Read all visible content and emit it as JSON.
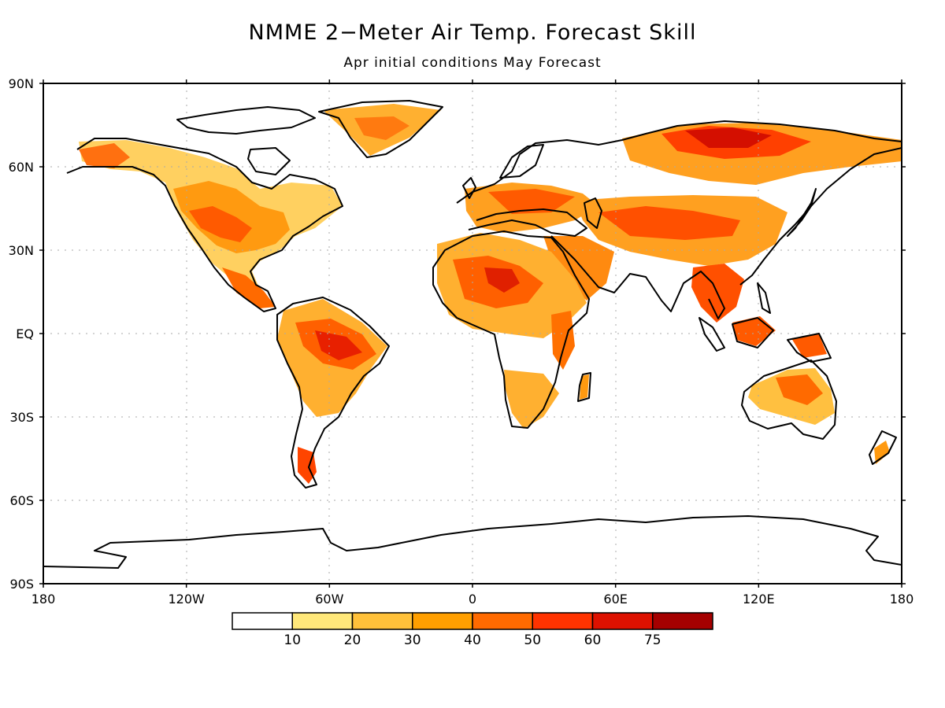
{
  "title": "NMME 2−Meter Air Temp. Forecast Skill",
  "subtitle": "Apr initial conditions   May Forecast",
  "map": {
    "lon_range": [
      -180,
      180
    ],
    "lat_range": [
      -90,
      90
    ],
    "lat_ticks": [
      {
        "value": 90,
        "label": "90N"
      },
      {
        "value": 60,
        "label": "60N"
      },
      {
        "value": 30,
        "label": "30N"
      },
      {
        "value": 0,
        "label": "EQ"
      },
      {
        "value": -30,
        "label": "30S"
      },
      {
        "value": -60,
        "label": "60S"
      },
      {
        "value": -90,
        "label": "90S"
      }
    ],
    "lon_ticks": [
      {
        "value": -180,
        "label": "180"
      },
      {
        "value": -120,
        "label": "120W"
      },
      {
        "value": -60,
        "label": "60W"
      },
      {
        "value": 0,
        "label": "0"
      },
      {
        "value": 60,
        "label": "60E"
      },
      {
        "value": 120,
        "label": "120E"
      },
      {
        "value": 180,
        "label": "180"
      }
    ],
    "gridlines": "dotted",
    "coastlines": true
  },
  "colorbar": {
    "colors": [
      "#ffffff",
      "#ffe87a",
      "#ffc13a",
      "#ff9f00",
      "#ff6a00",
      "#ff3300",
      "#dd1100",
      "#a50000"
    ],
    "labels": [
      "10",
      "20",
      "30",
      "40",
      "50",
      "60",
      "75"
    ]
  }
}
